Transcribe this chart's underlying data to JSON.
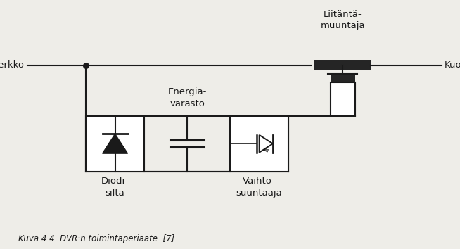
{
  "bg_color": "#eeede8",
  "line_color": "#1a1a1a",
  "dark_fill": "#252525",
  "caption": "Kuva 4.4. DVR:n toimintaperiaate. [7]",
  "label_verkko": "Verkko",
  "label_kuorma": "Kuorma",
  "label_liitanta": "Liitäntä-\nmuuntaja",
  "label_energia": "Energia-\nvarasto",
  "label_diodi": "Diodi-\nsilta",
  "label_vaihto": "Vaihto-\nsuuntaaja",
  "figsize": [
    6.54,
    3.54
  ],
  "dpi": 100
}
